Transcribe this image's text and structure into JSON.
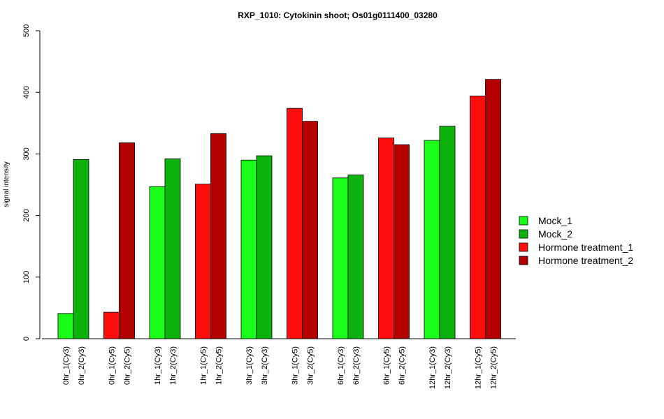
{
  "chart_data": {
    "type": "bar",
    "title": "RXP_1010: Cytokinin shoot; Os01g0111400_03280",
    "xlabel": "",
    "ylabel": "signal intensity",
    "ylim": [
      0,
      500
    ],
    "yticks": [
      0,
      100,
      200,
      300,
      400,
      500
    ],
    "grid": false,
    "legend_position": "right",
    "bars": [
      {
        "label": "0hr_1(Cy3)",
        "value": 41,
        "series": "Mock_1"
      },
      {
        "label": "0hr_2(Cy3)",
        "value": 291,
        "series": "Mock_2"
      },
      {
        "label": "0hr_1(Cy5)",
        "value": 43,
        "series": "Hormone treatment_1"
      },
      {
        "label": "0hr_2(Cy5)",
        "value": 318,
        "series": "Hormone treatment_2"
      },
      {
        "label": "1hr_1(Cy3)",
        "value": 247,
        "series": "Mock_1"
      },
      {
        "label": "1hr_2(Cy3)",
        "value": 292,
        "series": "Mock_2"
      },
      {
        "label": "1hr_1(Cy5)",
        "value": 251,
        "series": "Hormone treatment_1"
      },
      {
        "label": "1hr_2(Cy5)",
        "value": 333,
        "series": "Hormone treatment_2"
      },
      {
        "label": "3hr_1(Cy3)",
        "value": 290,
        "series": "Mock_1"
      },
      {
        "label": "3hr_2(Cy3)",
        "value": 297,
        "series": "Mock_2"
      },
      {
        "label": "3hr_1(Cy5)",
        "value": 374,
        "series": "Hormone treatment_1"
      },
      {
        "label": "3hr_2(Cy5)",
        "value": 353,
        "series": "Hormone treatment_2"
      },
      {
        "label": "6hr_1(Cy3)",
        "value": 261,
        "series": "Mock_1"
      },
      {
        "label": "6hr_2(Cy3)",
        "value": 266,
        "series": "Mock_2"
      },
      {
        "label": "6hr_1(Cy5)",
        "value": 326,
        "series": "Hormone treatment_1"
      },
      {
        "label": "6hr_2(Cy5)",
        "value": 315,
        "series": "Hormone treatment_2"
      },
      {
        "label": "12hr_1(Cy3)",
        "value": 322,
        "series": "Mock_1"
      },
      {
        "label": "12hr_2(Cy3)",
        "value": 345,
        "series": "Mock_2"
      },
      {
        "label": "12hr_1(Cy5)",
        "value": 394,
        "series": "Hormone treatment_1"
      },
      {
        "label": "12hr_2(Cy5)",
        "value": 421,
        "series": "Hormone treatment_2"
      }
    ],
    "legend": [
      {
        "name": "Mock_1",
        "color": "#1aff1a"
      },
      {
        "name": "Mock_2",
        "color": "#0db30d"
      },
      {
        "name": "Hormone treatment_1",
        "color": "#ff0d0d"
      },
      {
        "name": "Hormone treatment_2",
        "color": "#b30000"
      }
    ]
  }
}
